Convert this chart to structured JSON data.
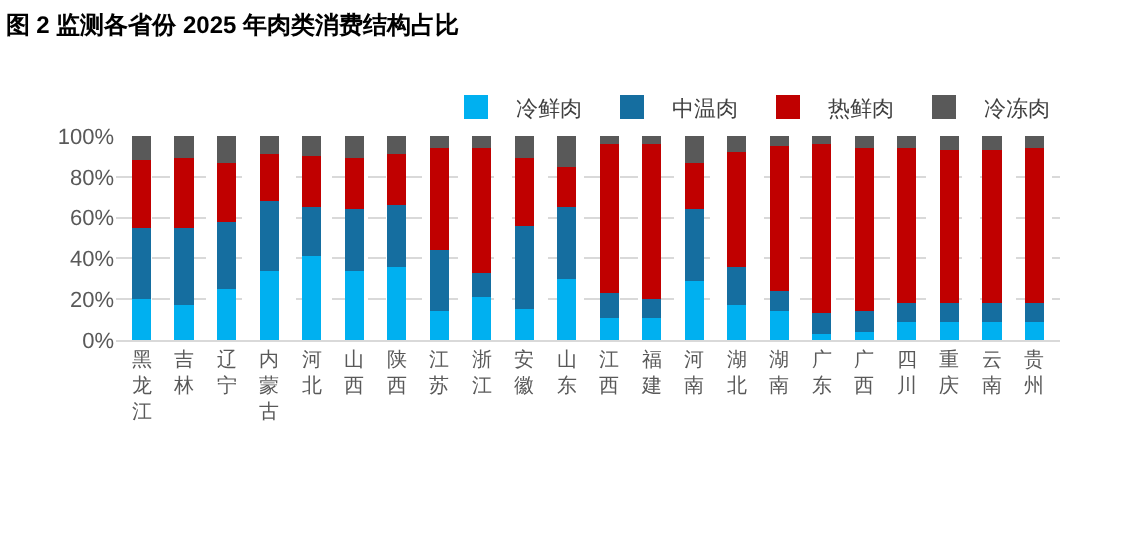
{
  "chart_data": {
    "type": "bar",
    "title": "图 2 监测各省份 2025 年肉类消费结构占比",
    "stacked": true,
    "categories": [
      "黑龙江",
      "吉林",
      "辽宁",
      "内蒙古",
      "河北",
      "山西",
      "陕西",
      "江苏",
      "浙江",
      "安徽",
      "山东",
      "江西",
      "福建",
      "河南",
      "湖北",
      "湖南",
      "广东",
      "广西",
      "四川",
      "重庆",
      "云南",
      "贵州"
    ],
    "series": [
      {
        "name": "冷鲜肉",
        "color": "#00b0f0",
        "values": [
          20,
          17,
          25,
          34,
          41,
          34,
          36,
          14,
          21,
          15,
          30,
          11,
          11,
          29,
          17,
          14,
          3,
          4,
          9,
          9,
          9,
          9
        ]
      },
      {
        "name": "中温肉",
        "color": "#156ea0",
        "values": [
          35,
          38,
          33,
          34,
          24,
          30,
          30,
          30,
          12,
          41,
          35,
          12,
          9,
          35,
          19,
          10,
          10,
          10,
          9,
          9,
          9,
          9
        ]
      },
      {
        "name": "热鲜肉",
        "color": "#c00000",
        "values": [
          33,
          34,
          29,
          23,
          25,
          25,
          25,
          50,
          61,
          33,
          20,
          73,
          76,
          23,
          56,
          71,
          83,
          80,
          76,
          75,
          75,
          76
        ]
      },
      {
        "name": "冷冻肉",
        "color": "#595959",
        "values": [
          12,
          11,
          13,
          9,
          10,
          11,
          9,
          6,
          6,
          11,
          15,
          4,
          4,
          13,
          8,
          5,
          4,
          6,
          6,
          7,
          7,
          6
        ]
      }
    ],
    "ylim": [
      0,
      100
    ],
    "yticks": [
      {
        "value": 0,
        "label": "0%"
      },
      {
        "value": 20,
        "label": "20%"
      },
      {
        "value": 40,
        "label": "40%"
      },
      {
        "value": 60,
        "label": "60%"
      },
      {
        "value": 80,
        "label": "80%"
      },
      {
        "value": 100,
        "label": "100%"
      }
    ],
    "grid": "y",
    "legend": "top right"
  }
}
